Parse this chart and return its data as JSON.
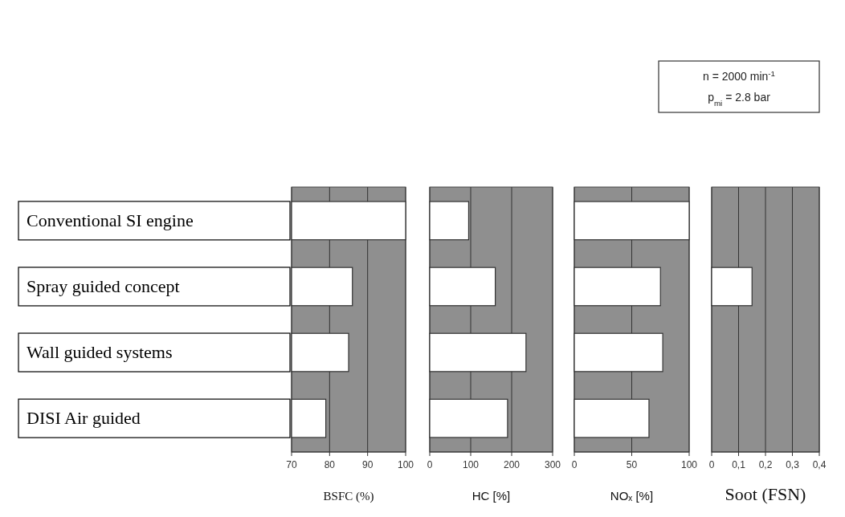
{
  "chart_data": [
    {
      "type": "bar",
      "orientation": "horizontal",
      "categories": [
        "Conventional SI engine",
        "Spray guided concept",
        "Wall guided systems",
        "DISI Air guided"
      ],
      "values": [
        100,
        86,
        85,
        79
      ],
      "color": "#ffffff",
      "xlim": [
        70,
        100
      ],
      "xticks": [
        70,
        80,
        90,
        100
      ],
      "xlabel": "BSFC (%)",
      "grid": "x"
    },
    {
      "type": "bar",
      "orientation": "horizontal",
      "categories": [
        null,
        null,
        null,
        null
      ],
      "values": [
        95,
        160,
        235,
        190
      ],
      "color": "#ffffff",
      "xlim": [
        0,
        300
      ],
      "xticks": [
        0,
        100,
        200,
        300
      ],
      "xlabel": "HC [%]",
      "grid": "x",
      "tick_labels": "x"
    },
    {
      "type": "bar",
      "orientation": "horizontal",
      "categories": [
        null,
        null,
        null,
        null
      ],
      "values": [
        100,
        75,
        77,
        65
      ],
      "color": "#ffffff",
      "xlim": [
        0,
        100
      ],
      "xticks": [
        0,
        50,
        100
      ],
      "xlabel": "NOₓ [%]",
      "grid": "x",
      "tick_labels": "x"
    },
    {
      "type": "bar",
      "orientation": "horizontal",
      "categories": [
        null,
        null,
        null,
        null
      ],
      "values": [
        null,
        0.15,
        null,
        null
      ],
      "color": "#ffffff",
      "xlim": [
        0,
        0.4
      ],
      "xticks": [
        0,
        {
          "value": 0.1,
          "label": "0,1"
        },
        {
          "value": 0.2,
          "label": "0,2"
        },
        {
          "value": 0.3,
          "label": "0,3"
        },
        {
          "value": 0.4,
          "label": "0,4"
        }
      ],
      "xlabel": "Soot (FSN)",
      "grid": "x",
      "tick_labels": "x",
      "annotations": [
        "n = 2000 min$^{-1}$",
        "p$_{mi}$ = 2.8 bar"
      ]
    }
  ]
}
